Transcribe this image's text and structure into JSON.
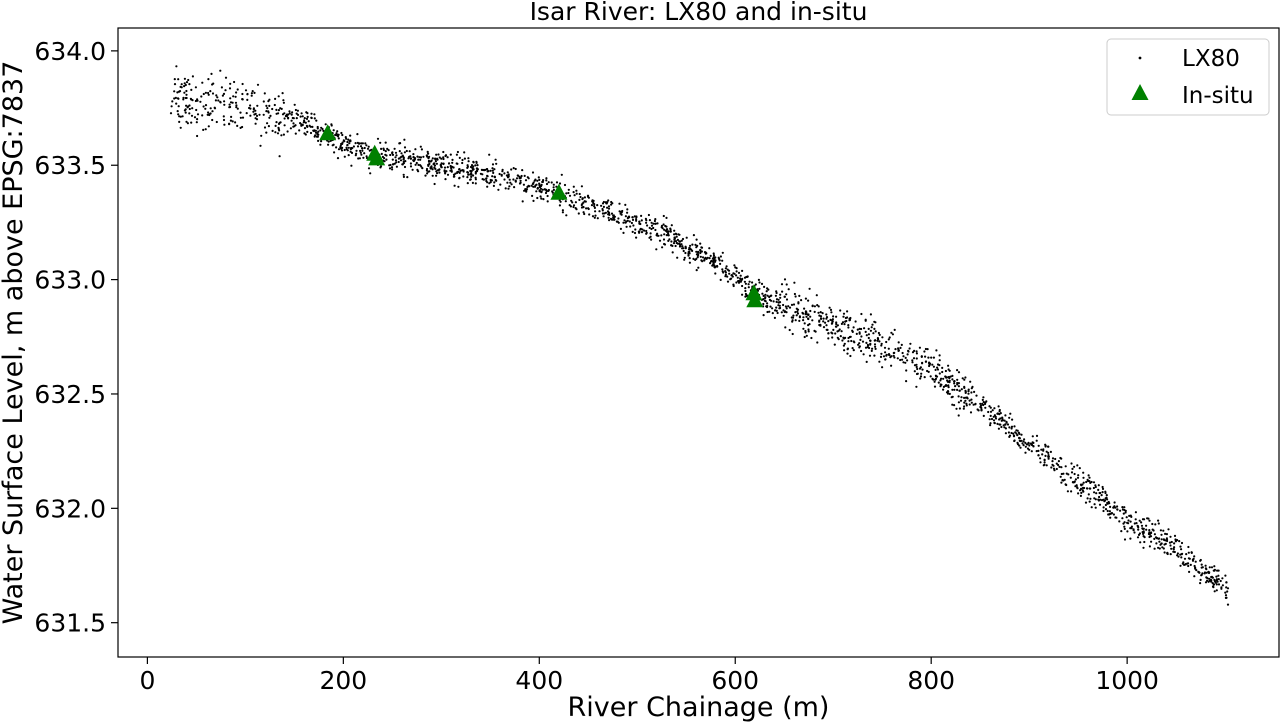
{
  "chart_data": {
    "type": "scatter",
    "title": "Isar River: LX80 and in-situ",
    "xlabel": "River Chainage (m)",
    "ylabel": "Water Surface Level, m above EPSG:7837",
    "xlim": [
      -30,
      1155
    ],
    "ylim": [
      631.35,
      634.1
    ],
    "xticks": [
      0,
      200,
      400,
      600,
      800,
      1000
    ],
    "yticks": [
      631.5,
      632.0,
      632.5,
      633.0,
      633.5,
      634.0
    ],
    "xtick_labels": [
      "0",
      "200",
      "400",
      "600",
      "800",
      "1000"
    ],
    "ytick_labels": [
      "631.5",
      "632.0",
      "632.5",
      "633.0",
      "633.5",
      "634.0"
    ],
    "grid": false,
    "legend_position": "top-right",
    "series": [
      {
        "name": "LX80",
        "marker": "point",
        "color": "#000000",
        "trend": [
          [
            24,
            633.8
          ],
          [
            40,
            633.78
          ],
          [
            60,
            633.76
          ],
          [
            80,
            633.77
          ],
          [
            100,
            633.75
          ],
          [
            120,
            633.72
          ],
          [
            140,
            633.71
          ],
          [
            160,
            633.69
          ],
          [
            180,
            633.64
          ],
          [
            200,
            633.59
          ],
          [
            230,
            633.55
          ],
          [
            260,
            633.53
          ],
          [
            300,
            633.5
          ],
          [
            340,
            633.47
          ],
          [
            380,
            633.43
          ],
          [
            420,
            633.38
          ],
          [
            460,
            633.31
          ],
          [
            500,
            633.25
          ],
          [
            540,
            633.17
          ],
          [
            580,
            633.07
          ],
          [
            620,
            632.94
          ],
          [
            660,
            632.86
          ],
          [
            700,
            632.8
          ],
          [
            740,
            632.74
          ],
          [
            780,
            632.66
          ],
          [
            820,
            632.55
          ],
          [
            860,
            632.42
          ],
          [
            900,
            632.28
          ],
          [
            940,
            632.15
          ],
          [
            980,
            632.02
          ],
          [
            1000,
            631.94
          ],
          [
            1040,
            631.86
          ],
          [
            1070,
            631.75
          ],
          [
            1090,
            631.69
          ],
          [
            1103,
            631.63
          ]
        ],
        "approx_point_count": 2400,
        "spread_m": 0.03
      },
      {
        "name": "In-situ",
        "marker": "triangle",
        "color": "#008000",
        "points": [
          [
            184,
            633.64
          ],
          [
            232,
            633.55
          ],
          [
            234,
            633.53
          ],
          [
            420,
            633.38
          ],
          [
            619,
            632.94
          ],
          [
            620,
            632.91
          ]
        ]
      }
    ]
  }
}
